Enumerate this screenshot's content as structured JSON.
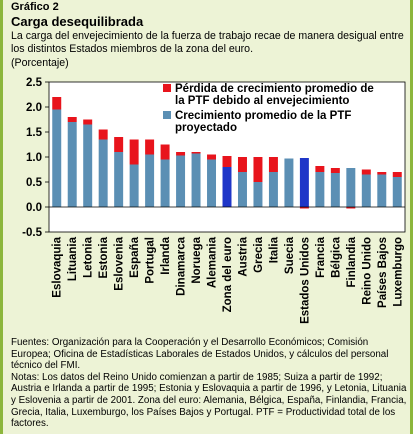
{
  "figure": {
    "number": "Gráfico 2",
    "title": "Carga desequilibrada",
    "subtitle": "La carga del envejecimiento de la fuerza de trabajo recae de manera desigual entre los distintos Estados miembros de la zona del euro.",
    "unit": "(Porcentaje)"
  },
  "chart_data": {
    "type": "bar",
    "stacked": true,
    "ylim": [
      -0.5,
      2.5
    ],
    "yticks": [
      "-0.5",
      "0.0",
      "0.5",
      "1.0",
      "1.5",
      "2.0",
      "2.5"
    ],
    "legend_position": "top-right",
    "categories": [
      "Eslovaquia",
      "Lituania",
      "Letonia",
      "Estonia",
      "Eslovenia",
      "España",
      "Portugal",
      "Irlanda",
      "Dinamarca",
      "Noruega",
      "Alemania",
      "Zona del euro",
      "Austria",
      "Grecia",
      "Italia",
      "Suecia",
      "Estados Unidos",
      "Francia",
      "Bélgica",
      "Finlandia",
      "Reino Unido",
      "Países Bajos",
      "Luxemburgo"
    ],
    "highlight": [
      "Zona del euro",
      "Estados Unidos"
    ],
    "series": [
      {
        "name": "Pérdida de crecimiento promedio de la PTF debido al envejecimiento",
        "values": [
          0.25,
          0.1,
          0.1,
          0.2,
          0.3,
          0.5,
          0.3,
          0.3,
          0.07,
          0.03,
          0.1,
          0.22,
          0.3,
          0.5,
          0.3,
          0.0,
          -0.03,
          0.12,
          0.1,
          -0.03,
          0.1,
          0.05,
          0.1
        ]
      },
      {
        "name": "Crecimiento promedio de la PTF proyectado",
        "values": [
          1.95,
          1.7,
          1.65,
          1.35,
          1.1,
          0.85,
          1.05,
          0.95,
          1.03,
          1.07,
          0.95,
          0.8,
          0.7,
          0.5,
          0.7,
          0.97,
          0.98,
          0.7,
          0.68,
          0.78,
          0.65,
          0.65,
          0.6
        ]
      }
    ],
    "colors": {
      "loss": "#e8141c",
      "projected": "#5b8fb4",
      "highlight": "#1f36c8"
    }
  },
  "notes": {
    "sources": "Fuentes: Organización para la Cooperación y el Desarrollo Económicos; Comisión Europea; Oficina de Estadísticas Laborales de Estados Unidos, y cálculos del personal técnico del FMI.",
    "text": "Notas: Los datos del Reino Unido comienzan a partir de 1985; Suiza a partir de 1992; Austria e Irlanda a partir de 1995; Estonia y Eslovaquia a partir de 1996, y Letonia, Lituania y Eslovenia a partir de 2001. Zona del euro: Alemania, Bélgica, España, Finlandia, Francia, Grecia, Italia, Luxemburgo, los Países Bajos y Portugal. PTF = Productividad total de los factores."
  }
}
